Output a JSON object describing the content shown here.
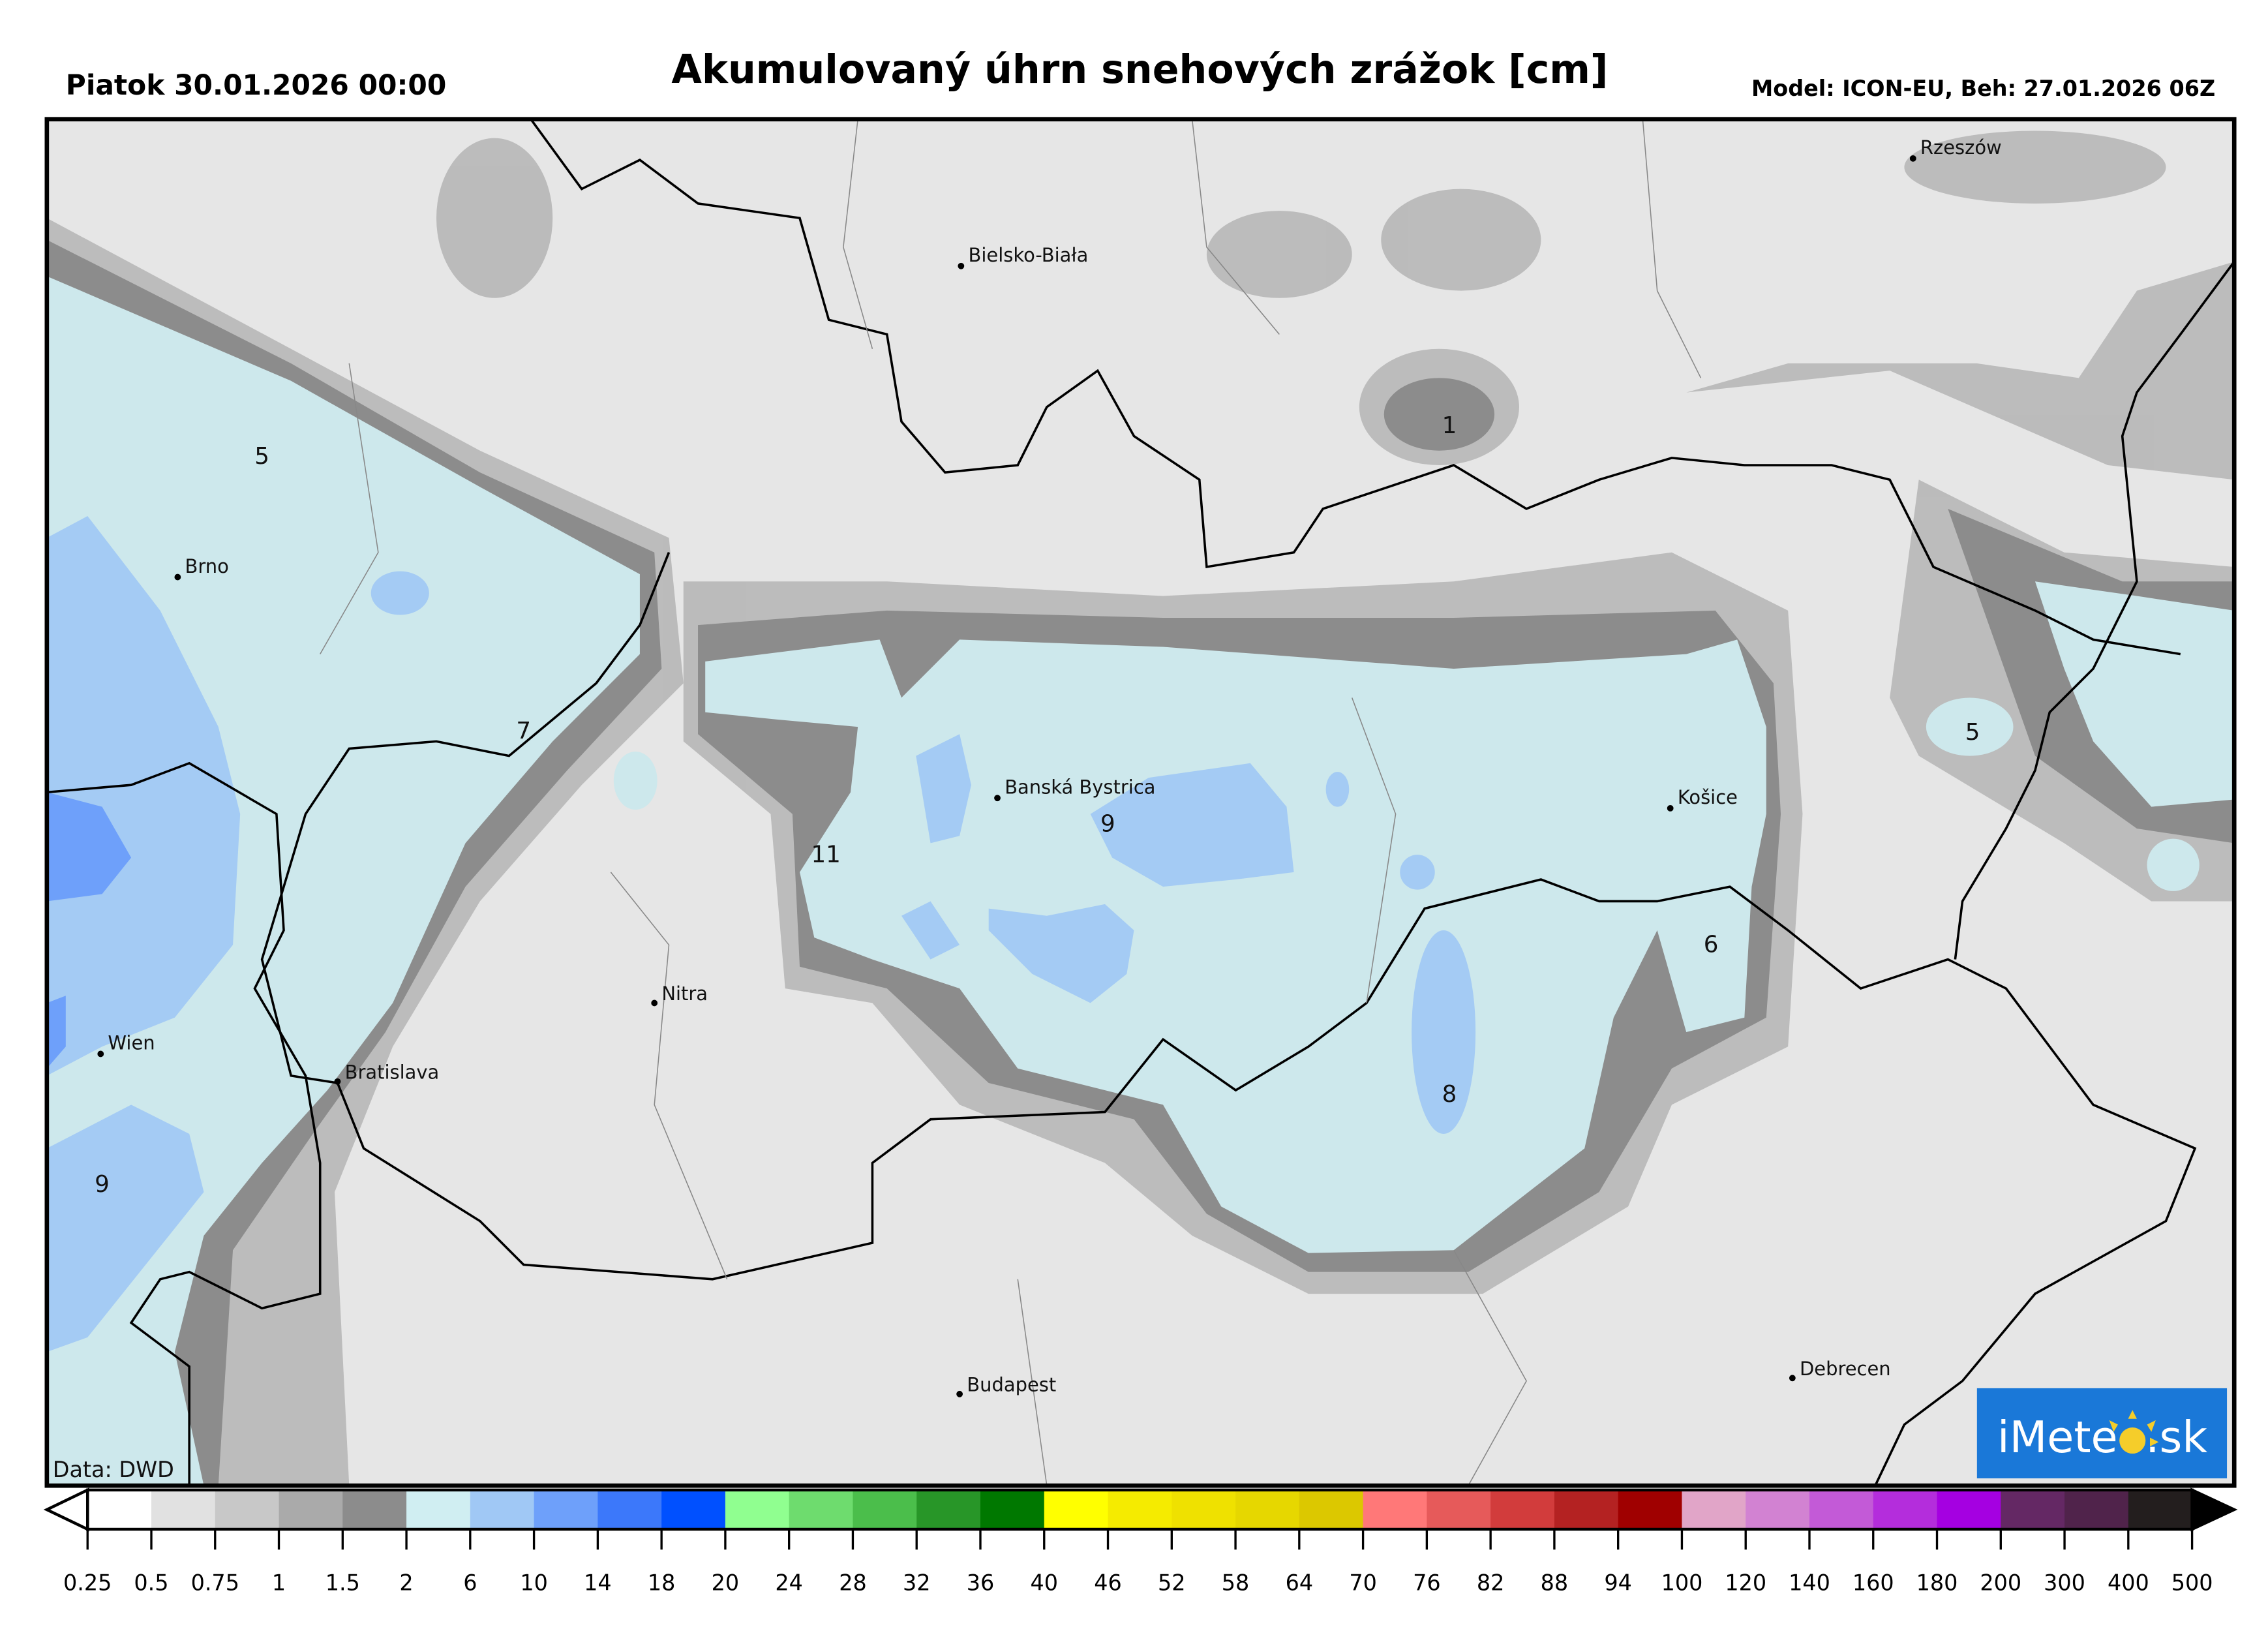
{
  "header": {
    "valid_time": "Piatok 30.01.2026 00:00",
    "title": "Akumulovaný úhrn snehových zrážok [cm]",
    "model_info": "Model: ICON-EU, Beh: 27.01.2026 06Z"
  },
  "map": {
    "background_color": "#e6e6e6",
    "snow_color": "#cde8ec",
    "cities": [
      {
        "name": "Rzeszów"
      },
      {
        "name": "Bielsko-Biała"
      },
      {
        "name": "Brno"
      },
      {
        "name": "Banská Bystrica"
      },
      {
        "name": "Košice"
      },
      {
        "name": "Nitra"
      },
      {
        "name": "Wien"
      },
      {
        "name": "Bratislava"
      },
      {
        "name": "Budapest"
      },
      {
        "name": "Debrecen"
      }
    ],
    "value_labels": [
      "5",
      "1",
      "7",
      "11",
      "9",
      "5",
      "6",
      "8",
      "9"
    ],
    "source": "Data: DWD"
  },
  "logo": {
    "text_left": "iMete",
    "text_right": ".sk",
    "color": "#1a78d8"
  },
  "legend": {
    "ticks": [
      "0.25",
      "0.5",
      "0.75",
      "1",
      "1.5",
      "2",
      "6",
      "10",
      "14",
      "18",
      "20",
      "24",
      "28",
      "32",
      "36",
      "40",
      "46",
      "52",
      "58",
      "64",
      "70",
      "76",
      "82",
      "88",
      "94",
      "100",
      "120",
      "140",
      "160",
      "180",
      "200",
      "300",
      "400",
      "500"
    ],
    "colors": [
      "#ffffff",
      "#e1e1e1",
      "#c8c8c8",
      "#aaaaaa",
      "#8c8c8c",
      "#d0eef2",
      "#a0c8f5",
      "#6ea0fa",
      "#3c78fa",
      "#0050ff",
      "#90ff90",
      "#6edc6e",
      "#4bbe4b",
      "#289628",
      "#007800",
      "#ffff00",
      "#f5eb00",
      "#efe100",
      "#e6d700",
      "#dcc800",
      "#ff7878",
      "#e65a5a",
      "#d23c3c",
      "#b42222",
      "#a00000",
      "#e1a5c8",
      "#d282d2",
      "#c35ad7",
      "#b42ddc",
      "#a500e1",
      "#642864",
      "#50234b",
      "#231e1e"
    ],
    "under_color": "#ffffff",
    "over_color": "#000000"
  }
}
